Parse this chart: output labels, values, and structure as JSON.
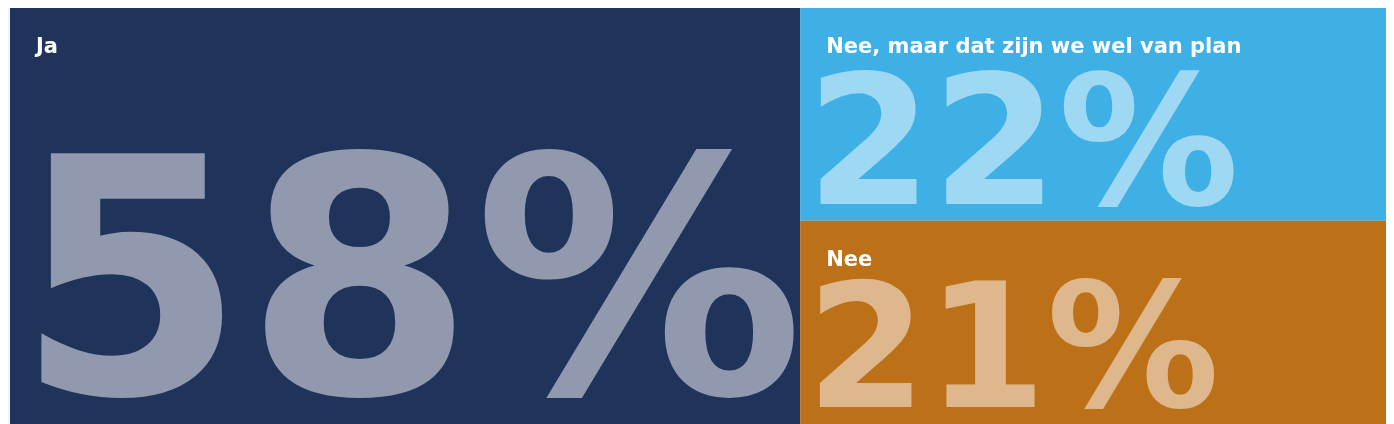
{
  "chart_data": {
    "type": "other",
    "categories": [
      "Ja",
      "Nee, maar dat zijn we wel van plan",
      "Nee"
    ],
    "values": [
      58,
      22,
      21
    ],
    "value_labels": [
      "58%",
      "22%",
      "21%"
    ],
    "colors": [
      "#20335b",
      "#3eb0e5",
      "#bc7119"
    ]
  }
}
